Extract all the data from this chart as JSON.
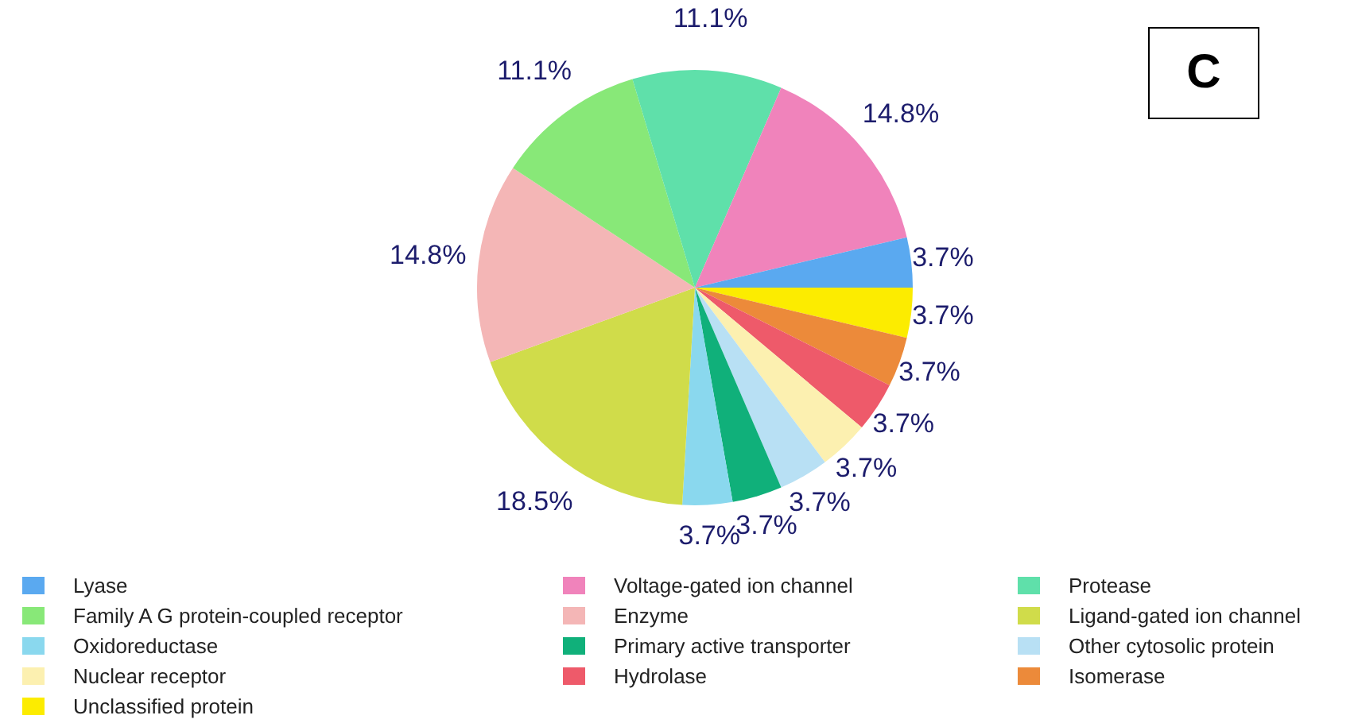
{
  "chart_data": {
    "type": "pie",
    "categories": [
      "Lyase",
      "Voltage-gated ion channel",
      "Protease",
      "Family A G protein-coupled receptor",
      "Enzyme",
      "Ligand-gated ion channel",
      "Oxidoreductase",
      "Primary active transporter",
      "Other cytosolic protein",
      "Nuclear receptor",
      "Hydrolase",
      "Isomerase",
      "Unclassified protein"
    ],
    "values": [
      3.7,
      14.8,
      11.1,
      11.1,
      14.8,
      18.5,
      3.7,
      3.7,
      3.7,
      3.7,
      3.7,
      3.7,
      3.7
    ],
    "value_labels": [
      "3.7%",
      "14.8%",
      "11.1%",
      "11.1%",
      "14.8%",
      "18.5%",
      "3.7%",
      "3.7%",
      "3.7%",
      "3.7%",
      "3.7%",
      "3.7%",
      "3.7%"
    ],
    "colors": [
      "#5aa9f0",
      "#f083bb",
      "#5fe0aa",
      "#88e878",
      "#f4b6b6",
      "#d0dc4a",
      "#8ad8ee",
      "#10b07a",
      "#b8e0f4",
      "#fcf0b0",
      "#ee5a6a",
      "#ec8a3a",
      "#fcec00"
    ],
    "legend": "bottom",
    "annotations": [
      "C"
    ]
  }
}
